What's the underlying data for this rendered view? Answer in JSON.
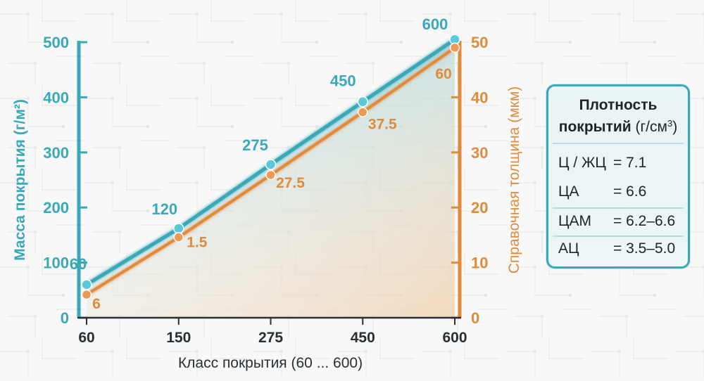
{
  "chart_data": {
    "type": "line",
    "x_title": "Класс покрытия (60 ... 600)",
    "categories": [
      "60",
      "150",
      "275",
      "450",
      "600"
    ],
    "y_left": {
      "title": "Масса покрытия (г/м²)",
      "ticks": [
        "0",
        "100",
        "200",
        "300",
        "400",
        "500"
      ],
      "ylim": [
        0,
        500
      ],
      "color": "#3aa8b8"
    },
    "y_right": {
      "title": "Справочная толщина (мкм)",
      "ticks": [
        "0",
        "10",
        "20",
        "30",
        "40",
        "50"
      ],
      "ylim": [
        0,
        50
      ],
      "color": "#e08a3c"
    },
    "series": [
      {
        "axis": "left",
        "color": "#3aa8b8",
        "values": [
          60,
          162,
          278,
          392,
          505
        ],
        "labels": [
          "60",
          "120",
          "275",
          "450",
          "600"
        ]
      },
      {
        "axis": "right",
        "color": "#e08a3c",
        "values": [
          4.2,
          14.6,
          25.9,
          37.3,
          49.0
        ],
        "labels": [
          "6",
          "1.5",
          "27.5",
          "37.5",
          "60"
        ]
      }
    ],
    "grid": false,
    "legend_position": "right"
  },
  "density_panel": {
    "title_bold": "Плотность покрытий",
    "title_unit_prefix": "(г/см",
    "title_unit_sup": "3",
    "title_unit_suffix": ")",
    "rows": [
      {
        "name": "Ц / ЖЦ",
        "value": "= 7.1"
      },
      {
        "name": "ЦА",
        "value": "= 6.6"
      },
      {
        "name": "ЦАМ",
        "value": "= 6.2–6.6"
      },
      {
        "name": "АЦ",
        "value": "= 3.5–5.0"
      }
    ]
  }
}
